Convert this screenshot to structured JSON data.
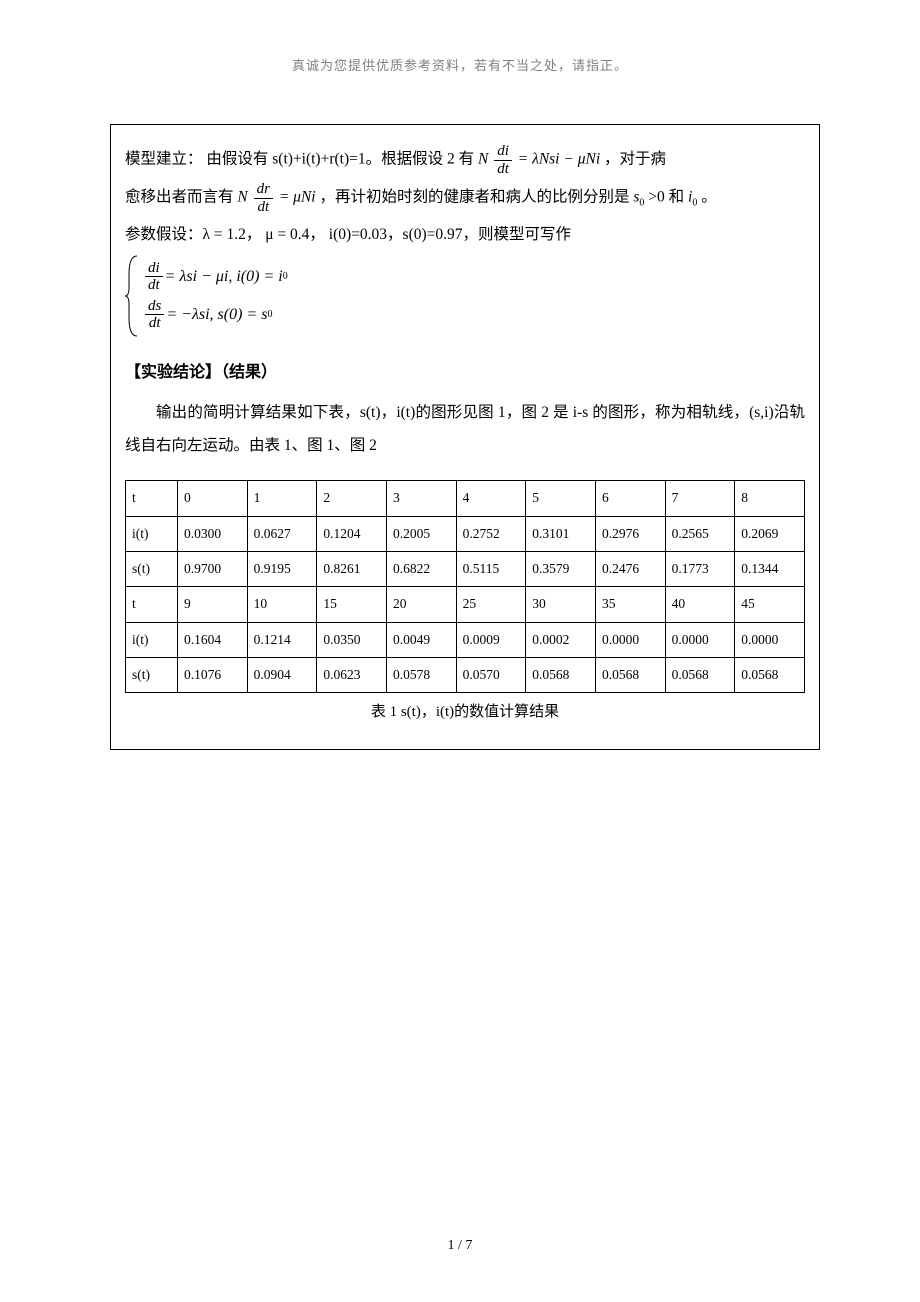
{
  "header_note": "真诚为您提供优质参考资料，若有不当之处，请指正。",
  "body": {
    "p1_a": "模型建立：  由假设有 s(t)+i(t)+r(t)=1。根据假设 2 有",
    "eq1_lhs_N": "N",
    "eq1_frac_num": "di",
    "eq1_frac_den": "dt",
    "eq1_rhs": "= λNsi − μNi",
    "p1_b": "，对于病",
    "p2_a": "愈移出者而言有",
    "eq2_lhs_N": "N",
    "eq2_frac_num": "dr",
    "eq2_frac_den": "dt",
    "eq2_rhs": "= μNi",
    "p2_b": "，再计初始时刻的健康者和病人的比例分别是",
    "p2_s0": "s",
    "p2_s0_sub": "0",
    "p2_c": ">0 和",
    "p2_i0": "i",
    "p2_i0_sub": "0",
    "p2_d": "。",
    "p3": "参数假设：λ = 1.2， μ = 0.4， i(0)=0.03，s(0)=0.97，则模型可写作",
    "sys_eq1_frac_num": "di",
    "sys_eq1_frac_den": "dt",
    "sys_eq1_rhs": " = λsi − μi, i(0) = i",
    "sys_eq1_sub": "0",
    "sys_eq2_frac_num": "ds",
    "sys_eq2_frac_den": "dt",
    "sys_eq2_rhs": " = −λsi, s(0) = s",
    "sys_eq2_sub": "0"
  },
  "section_heading": "【实验结论】（结果）",
  "conclusion_p1": "输出的简明计算结果如下表，s(t)，i(t)的图形见图 1，图 2 是 i-s 的图形，称为相轨线，(s,i)沿轨线自右向左运动。由表 1、图 1、图 2",
  "table": {
    "row1": [
      "t",
      "0",
      "1",
      "2",
      "3",
      "4",
      "5",
      "6",
      "7",
      "8"
    ],
    "row2": [
      "i(t)",
      "0.0300",
      "0.0627",
      "0.1204",
      "0.2005",
      "0.2752",
      "0.3101",
      "0.2976",
      "0.2565",
      "0.2069"
    ],
    "row3": [
      "s(t)",
      "0.9700",
      "0.9195",
      "0.8261",
      "0.6822",
      "0.5115",
      "0.3579",
      "0.2476",
      "0.1773",
      "0.1344"
    ],
    "row4": [
      "t",
      "9",
      "10",
      "15",
      "20",
      "25",
      "30",
      "35",
      "40",
      "45"
    ],
    "row5": [
      "i(t)",
      "0.1604",
      "0.1214",
      "0.0350",
      "0.0049",
      "0.0009",
      "0.0002",
      "0.0000",
      "0.0000",
      "0.0000"
    ],
    "row6": [
      "s(t)",
      "0.1076",
      "0.0904",
      "0.0623",
      "0.0578",
      "0.0570",
      "0.0568",
      "0.0568",
      "0.0568",
      "0.0568"
    ]
  },
  "table_caption": "表 1  s(t)，i(t)的数值计算结果",
  "page_number": "1 / 7",
  "colors": {
    "text": "#000000",
    "header_gray": "#808080",
    "border": "#000000",
    "background": "#ffffff"
  }
}
